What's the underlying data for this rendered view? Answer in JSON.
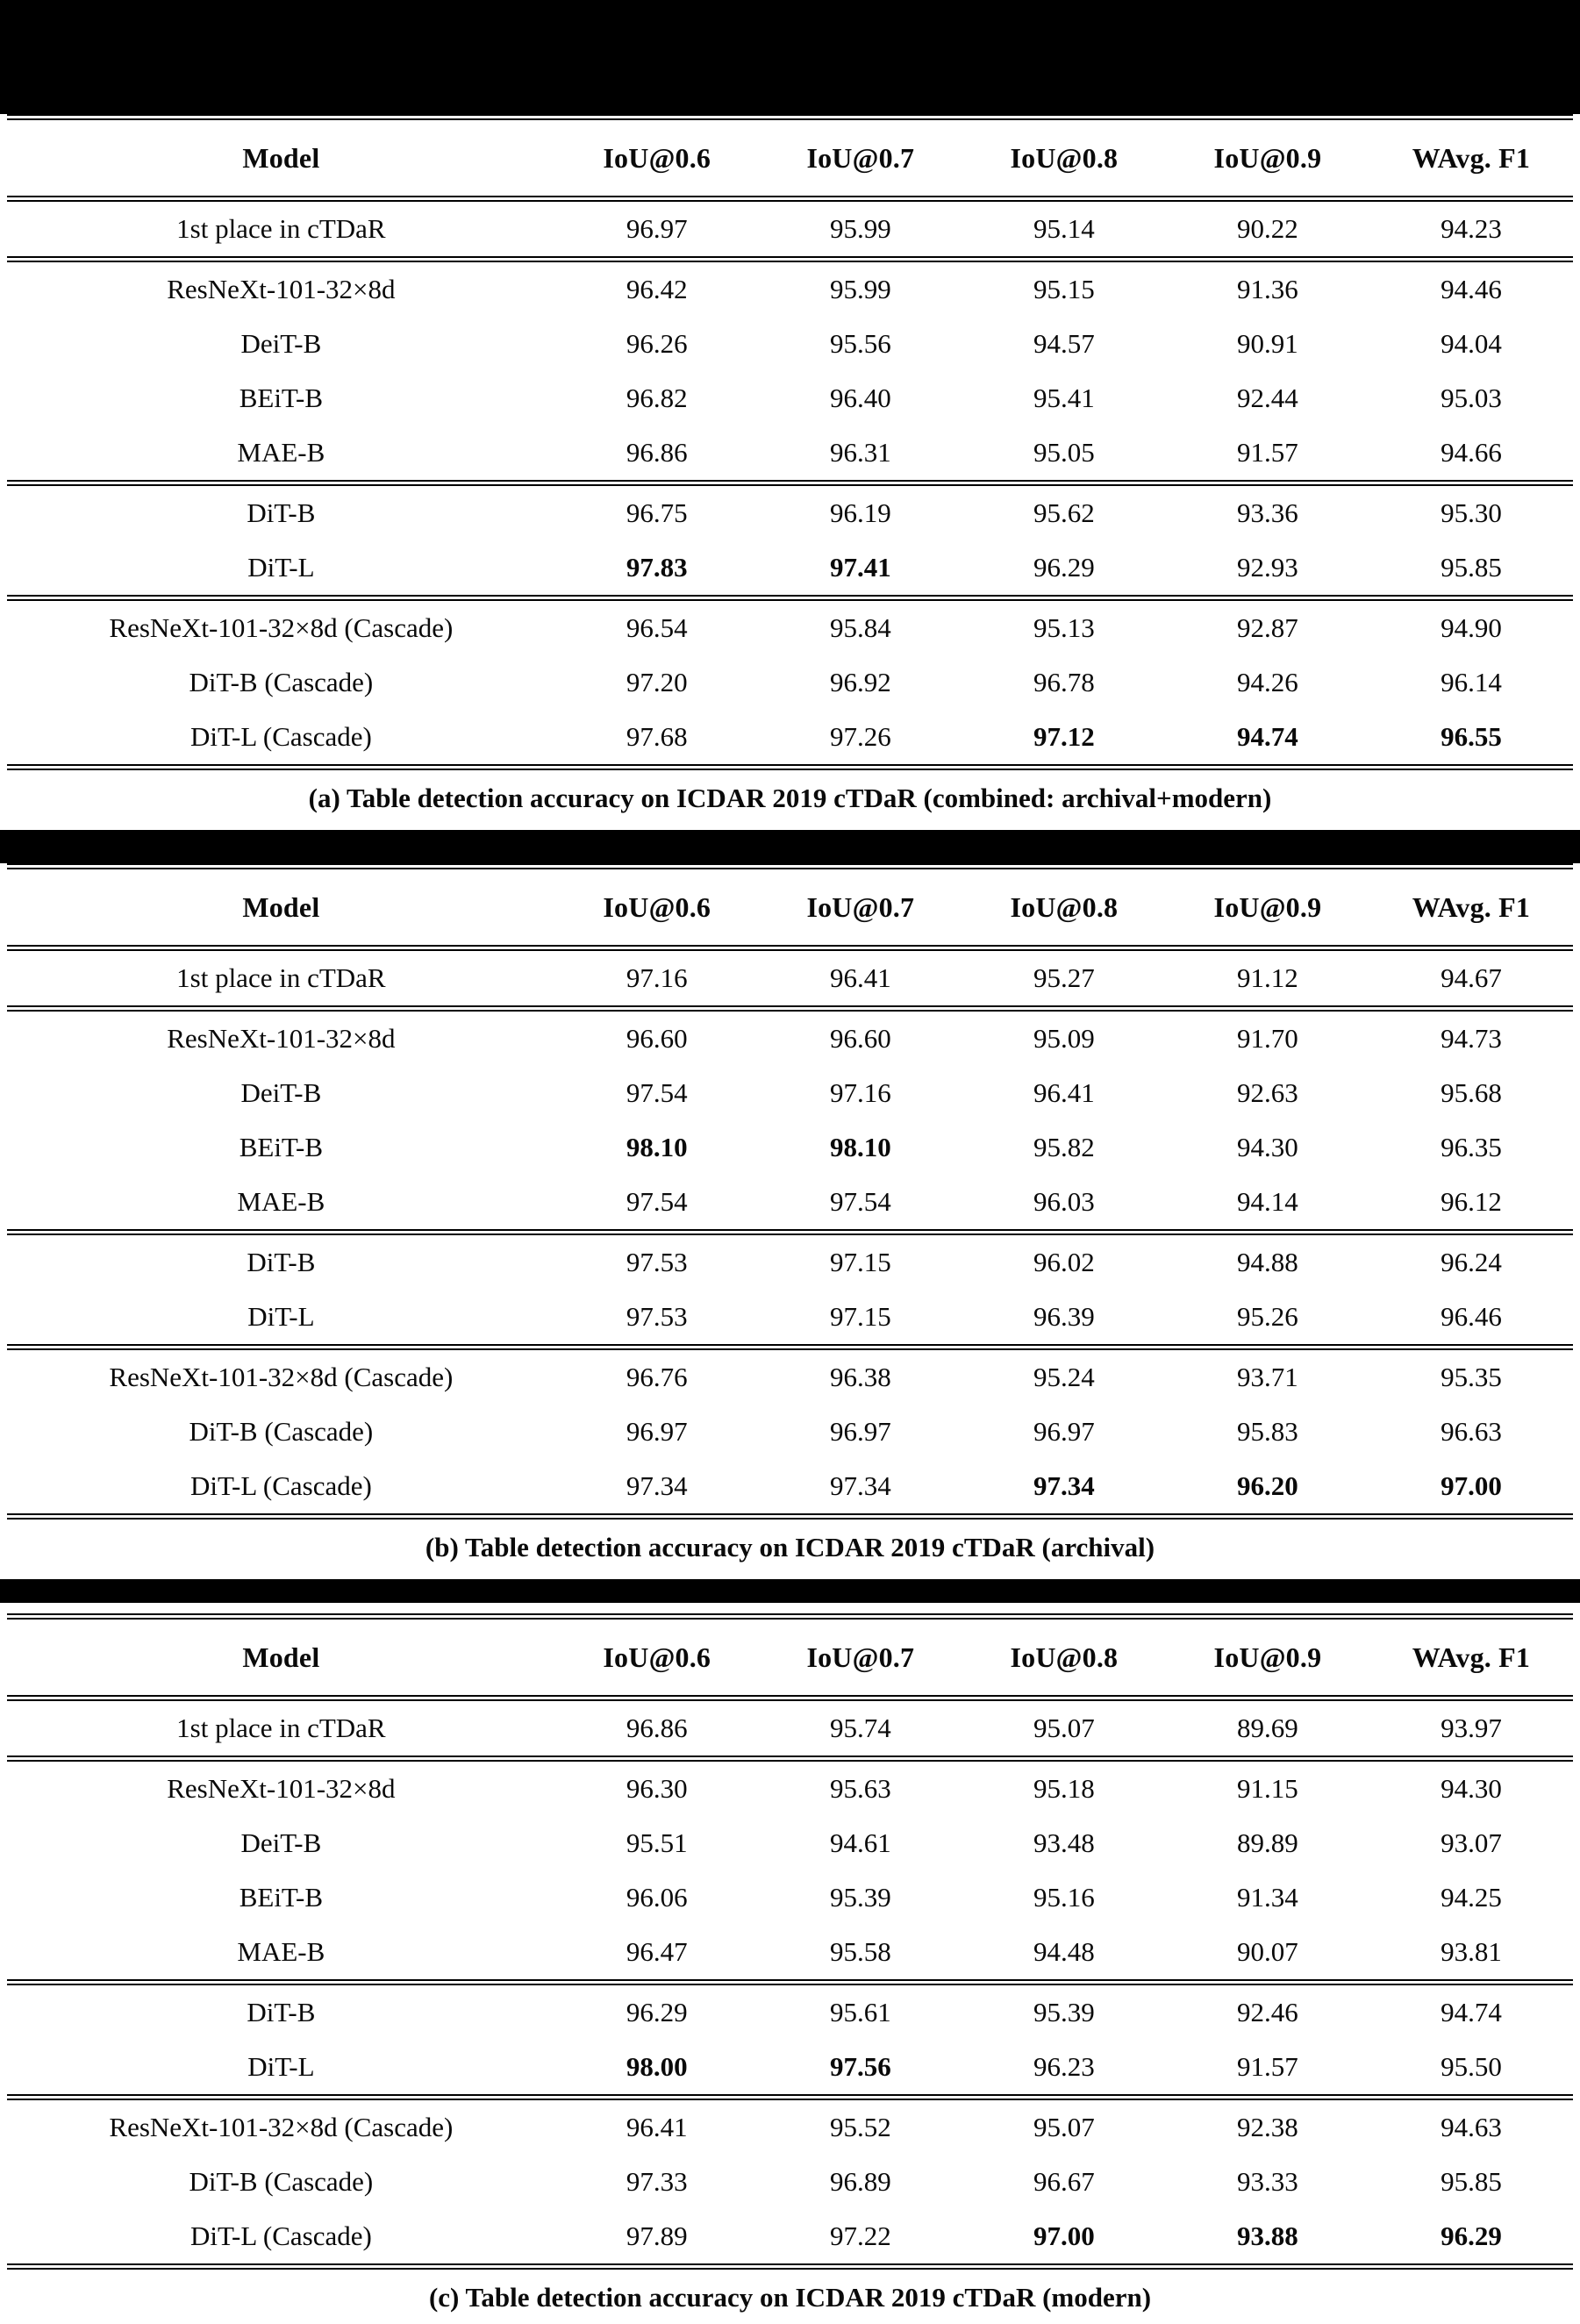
{
  "columns": [
    "Model",
    "IoU@0.6",
    "IoU@0.7",
    "IoU@0.8",
    "IoU@0.9",
    "WAvg. F1"
  ],
  "tables": [
    {
      "id": "a",
      "caption": "(a) Table detection accuracy on ICDAR 2019 cTDaR (combined: archival+modern)",
      "groups": [
        {
          "rows": [
            {
              "model": "1st place in cTDaR",
              "values": [
                "96.97",
                "95.99",
                "95.14",
                "90.22",
                "94.23"
              ],
              "bold": []
            }
          ]
        },
        {
          "rows": [
            {
              "model": "ResNeXt-101-32×8d",
              "values": [
                "96.42",
                "95.99",
                "95.15",
                "91.36",
                "94.46"
              ],
              "bold": []
            },
            {
              "model": "DeiT-B",
              "values": [
                "96.26",
                "95.56",
                "94.57",
                "90.91",
                "94.04"
              ],
              "bold": []
            },
            {
              "model": "BEiT-B",
              "values": [
                "96.82",
                "96.40",
                "95.41",
                "92.44",
                "95.03"
              ],
              "bold": []
            },
            {
              "model": "MAE-B",
              "values": [
                "96.86",
                "96.31",
                "95.05",
                "91.57",
                "94.66"
              ],
              "bold": []
            }
          ]
        },
        {
          "rows": [
            {
              "model": "DiT-B",
              "values": [
                "96.75",
                "96.19",
                "95.62",
                "93.36",
                "95.30"
              ],
              "bold": []
            },
            {
              "model": "DiT-L",
              "values": [
                "97.83",
                "97.41",
                "96.29",
                "92.93",
                "95.85"
              ],
              "bold": [
                0,
                1
              ]
            }
          ]
        },
        {
          "rows": [
            {
              "model": "ResNeXt-101-32×8d (Cascade)",
              "values": [
                "96.54",
                "95.84",
                "95.13",
                "92.87",
                "94.90"
              ],
              "bold": []
            },
            {
              "model": "DiT-B (Cascade)",
              "values": [
                "97.20",
                "96.92",
                "96.78",
                "94.26",
                "96.14"
              ],
              "bold": []
            },
            {
              "model": "DiT-L (Cascade)",
              "values": [
                "97.68",
                "97.26",
                "97.12",
                "94.74",
                "96.55"
              ],
              "bold": [
                2,
                3,
                4
              ]
            }
          ]
        }
      ]
    },
    {
      "id": "b",
      "caption": "(b) Table detection accuracy on ICDAR 2019 cTDaR (archival)",
      "groups": [
        {
          "rows": [
            {
              "model": "1st place in cTDaR",
              "values": [
                "97.16",
                "96.41",
                "95.27",
                "91.12",
                "94.67"
              ],
              "bold": []
            }
          ]
        },
        {
          "rows": [
            {
              "model": "ResNeXt-101-32×8d",
              "values": [
                "96.60",
                "96.60",
                "95.09",
                "91.70",
                "94.73"
              ],
              "bold": []
            },
            {
              "model": "DeiT-B",
              "values": [
                "97.54",
                "97.16",
                "96.41",
                "92.63",
                "95.68"
              ],
              "bold": []
            },
            {
              "model": "BEiT-B",
              "values": [
                "98.10",
                "98.10",
                "95.82",
                "94.30",
                "96.35"
              ],
              "bold": [
                0,
                1
              ]
            },
            {
              "model": "MAE-B",
              "values": [
                "97.54",
                "97.54",
                "96.03",
                "94.14",
                "96.12"
              ],
              "bold": []
            }
          ]
        },
        {
          "rows": [
            {
              "model": "DiT-B",
              "values": [
                "97.53",
                "97.15",
                "96.02",
                "94.88",
                "96.24"
              ],
              "bold": []
            },
            {
              "model": "DiT-L",
              "values": [
                "97.53",
                "97.15",
                "96.39",
                "95.26",
                "96.46"
              ],
              "bold": []
            }
          ]
        },
        {
          "rows": [
            {
              "model": "ResNeXt-101-32×8d (Cascade)",
              "values": [
                "96.76",
                "96.38",
                "95.24",
                "93.71",
                "95.35"
              ],
              "bold": []
            },
            {
              "model": "DiT-B (Cascade)",
              "values": [
                "96.97",
                "96.97",
                "96.97",
                "95.83",
                "96.63"
              ],
              "bold": []
            },
            {
              "model": "DiT-L (Cascade)",
              "values": [
                "97.34",
                "97.34",
                "97.34",
                "96.20",
                "97.00"
              ],
              "bold": [
                2,
                3,
                4
              ]
            }
          ]
        }
      ]
    },
    {
      "id": "c",
      "caption": "(c) Table detection accuracy on ICDAR 2019 cTDaR (modern)",
      "groups": [
        {
          "rows": [
            {
              "model": "1st place in cTDaR",
              "values": [
                "96.86",
                "95.74",
                "95.07",
                "89.69",
                "93.97"
              ],
              "bold": []
            }
          ]
        },
        {
          "rows": [
            {
              "model": "ResNeXt-101-32×8d",
              "values": [
                "96.30",
                "95.63",
                "95.18",
                "91.15",
                "94.30"
              ],
              "bold": []
            },
            {
              "model": "DeiT-B",
              "values": [
                "95.51",
                "94.61",
                "93.48",
                "89.89",
                "93.07"
              ],
              "bold": []
            },
            {
              "model": "BEiT-B",
              "values": [
                "96.06",
                "95.39",
                "95.16",
                "91.34",
                "94.25"
              ],
              "bold": []
            },
            {
              "model": "MAE-B",
              "values": [
                "96.47",
                "95.58",
                "94.48",
                "90.07",
                "93.81"
              ],
              "bold": []
            }
          ]
        },
        {
          "rows": [
            {
              "model": "DiT-B",
              "values": [
                "96.29",
                "95.61",
                "95.39",
                "92.46",
                "94.74"
              ],
              "bold": []
            },
            {
              "model": "DiT-L",
              "values": [
                "98.00",
                "97.56",
                "96.23",
                "91.57",
                "95.50"
              ],
              "bold": [
                0,
                1
              ]
            }
          ]
        },
        {
          "rows": [
            {
              "model": "ResNeXt-101-32×8d (Cascade)",
              "values": [
                "96.41",
                "95.52",
                "95.07",
                "92.38",
                "94.63"
              ],
              "bold": []
            },
            {
              "model": "DiT-B (Cascade)",
              "values": [
                "97.33",
                "96.89",
                "96.67",
                "93.33",
                "95.85"
              ],
              "bold": []
            },
            {
              "model": "DiT-L (Cascade)",
              "values": [
                "97.89",
                "97.22",
                "97.00",
                "93.88",
                "96.29"
              ],
              "bold": [
                2,
                3,
                4
              ]
            }
          ]
        }
      ]
    }
  ]
}
